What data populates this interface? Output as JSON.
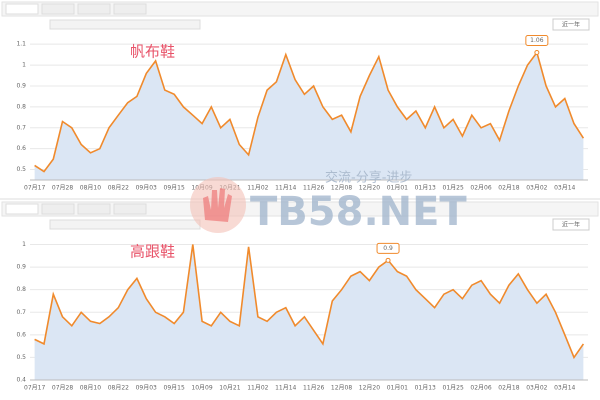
{
  "chart_data": [
    {
      "type": "line",
      "title": "帆布鞋",
      "range_button": "近一年",
      "color": "#f08a2c",
      "area_color": "#dbe6f4",
      "grid": true,
      "ylim": [
        0.45,
        1.12
      ],
      "yticks": [
        0.5,
        0.6,
        0.7,
        0.8,
        0.9,
        1,
        1.1
      ],
      "categories": [
        "07月17",
        null,
        null,
        "07月28",
        null,
        null,
        "08月10",
        null,
        null,
        "08月22",
        null,
        null,
        "09月03",
        null,
        null,
        "09月15",
        null,
        null,
        "10月09",
        null,
        null,
        "10月21",
        null,
        null,
        "11月02",
        null,
        null,
        "11月14",
        null,
        null,
        "11月26",
        null,
        null,
        "12月08",
        null,
        null,
        "12月20",
        null,
        null,
        "01月01",
        null,
        null,
        "01月13",
        null,
        null,
        "01月25",
        null,
        null,
        "02月06",
        null,
        null,
        "02月18",
        null,
        null,
        "03月02",
        null,
        null,
        "03月14",
        null,
        null
      ],
      "values": [
        0.52,
        0.49,
        0.55,
        0.73,
        0.7,
        0.62,
        0.58,
        0.6,
        0.7,
        0.76,
        0.82,
        0.85,
        0.96,
        1.02,
        0.88,
        0.86,
        0.8,
        0.76,
        0.72,
        0.8,
        0.7,
        0.74,
        0.62,
        0.57,
        0.75,
        0.88,
        0.92,
        1.05,
        0.93,
        0.86,
        0.9,
        0.8,
        0.74,
        0.76,
        0.68,
        0.85,
        0.95,
        1.04,
        0.88,
        0.8,
        0.74,
        0.78,
        0.7,
        0.8,
        0.7,
        0.74,
        0.66,
        0.76,
        0.7,
        0.72,
        0.64,
        0.78,
        0.9,
        1.0,
        1.06,
        0.9,
        0.8,
        0.84,
        0.72,
        0.65
      ],
      "value_labels": [
        null,
        null,
        null,
        null,
        null,
        null,
        null,
        null,
        null,
        null,
        null,
        null,
        null,
        null,
        null,
        null,
        null,
        null,
        null,
        null,
        null,
        null,
        null,
        null,
        null,
        null,
        null,
        null,
        null,
        null,
        null,
        null,
        null,
        null,
        null,
        null,
        null,
        null,
        null,
        null,
        null,
        null,
        null,
        null,
        null,
        null,
        null,
        null,
        null,
        null,
        null,
        null,
        null,
        null,
        "1.06",
        null,
        null,
        null,
        null,
        null
      ]
    },
    {
      "type": "line",
      "title": "高跟鞋",
      "range_button": "近一年",
      "color": "#f08a2c",
      "area_color": "#dbe6f4",
      "grid": true,
      "ylim": [
        0.4,
        1.02
      ],
      "yticks": [
        0.4,
        0.5,
        0.6,
        0.7,
        0.8,
        0.9,
        1
      ],
      "categories": [
        "07月17",
        null,
        null,
        "07月28",
        null,
        null,
        "08月10",
        null,
        null,
        "08月22",
        null,
        null,
        "09月03",
        null,
        null,
        "09月15",
        null,
        null,
        "10月09",
        null,
        null,
        "10月21",
        null,
        null,
        "11月02",
        null,
        null,
        "11月14",
        null,
        null,
        "11月26",
        null,
        null,
        "12月08",
        null,
        null,
        "12月20",
        null,
        null,
        "01月01",
        null,
        null,
        "01月13",
        null,
        null,
        "01月25",
        null,
        null,
        "02月06",
        null,
        null,
        "02月18",
        null,
        null,
        "03月02",
        null,
        null,
        "03月14",
        null,
        null
      ],
      "values": [
        0.58,
        0.56,
        0.78,
        0.68,
        0.64,
        0.7,
        0.66,
        0.65,
        0.68,
        0.72,
        0.8,
        0.85,
        0.76,
        0.7,
        0.68,
        0.65,
        0.7,
        1.0,
        0.66,
        0.64,
        0.7,
        0.66,
        0.64,
        0.99,
        0.68,
        0.66,
        0.7,
        0.72,
        0.64,
        0.68,
        0.62,
        0.56,
        0.75,
        0.8,
        0.86,
        0.88,
        0.84,
        0.9,
        0.93,
        0.88,
        0.86,
        0.8,
        0.76,
        0.72,
        0.78,
        0.8,
        0.76,
        0.82,
        0.84,
        0.78,
        0.74,
        0.82,
        0.87,
        0.8,
        0.74,
        0.78,
        0.7,
        0.6,
        0.5,
        0.56
      ],
      "value_labels": [
        null,
        null,
        null,
        null,
        null,
        null,
        null,
        null,
        null,
        null,
        null,
        null,
        null,
        null,
        null,
        null,
        null,
        null,
        null,
        null,
        null,
        null,
        null,
        null,
        null,
        null,
        null,
        null,
        null,
        null,
        null,
        null,
        null,
        null,
        null,
        null,
        null,
        null,
        "0.9",
        null,
        null,
        null,
        null,
        null,
        null,
        null,
        null,
        null,
        null,
        null,
        null,
        null,
        null,
        null,
        null,
        null,
        null,
        null,
        null,
        null
      ]
    }
  ],
  "watermark": {
    "text": "TB58.NET",
    "slogan": "交流-分享-进步"
  }
}
